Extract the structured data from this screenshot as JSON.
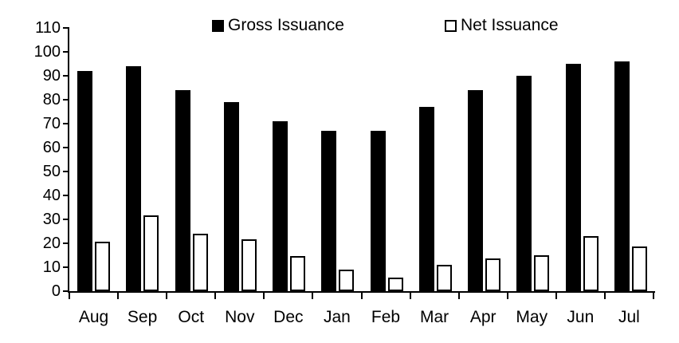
{
  "chart_data": {
    "type": "bar",
    "title": "",
    "xlabel": "",
    "ylabel": "",
    "categories": [
      "Aug",
      "Sep",
      "Oct",
      "Nov",
      "Dec",
      "Jan",
      "Feb",
      "Mar",
      "Apr",
      "May",
      "Jun",
      "Jul"
    ],
    "series": [
      {
        "name": "Gross Issuance",
        "style": "solid",
        "fill_color": "#000000",
        "values": [
          92,
          94,
          84,
          79,
          71,
          67,
          67,
          77,
          84,
          90,
          95,
          96
        ]
      },
      {
        "name": "Net Issuance",
        "style": "outline",
        "fill_color": "#ffffff",
        "border_color": "#000000",
        "values": [
          20.5,
          31.5,
          24,
          21.5,
          14.5,
          9,
          5.5,
          11,
          13.5,
          15,
          23,
          18.5
        ]
      }
    ],
    "ylim": [
      0,
      110
    ],
    "ytick_step": 10,
    "grid": false,
    "legend_position": "top",
    "axis_color": "#000000",
    "background_color": "#ffffff"
  }
}
